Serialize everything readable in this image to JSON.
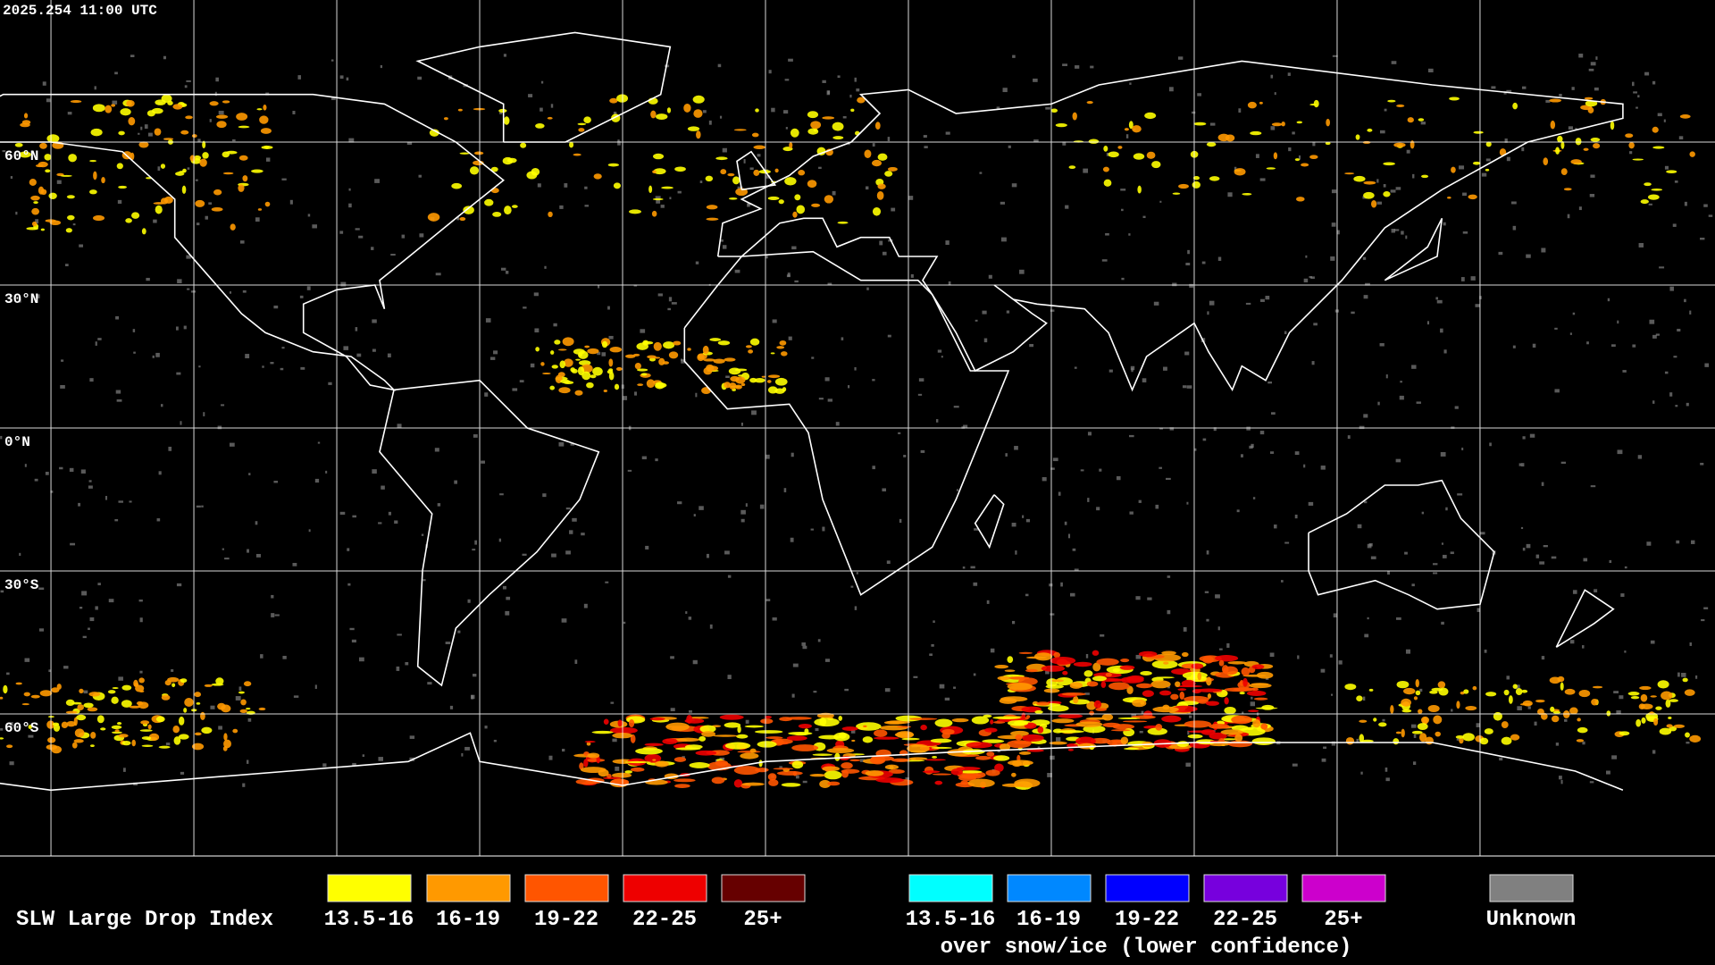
{
  "header": {
    "timestamp": "2025.254 11:00 UTC"
  },
  "map": {
    "latitude_labels": [
      "60°N",
      "30°N",
      "0°N",
      "30°S",
      "60°S"
    ]
  },
  "legend": {
    "title": "SLW Large Drop Index",
    "items": [
      {
        "label": "13.5-16",
        "color": "#ffff00"
      },
      {
        "label": "16-19",
        "color": "#ff9900"
      },
      {
        "label": "19-22",
        "color": "#ff5500"
      },
      {
        "label": "22-25",
        "color": "#ee0000"
      },
      {
        "label": "25+",
        "color": "#660000"
      }
    ],
    "snow_items": [
      {
        "label": "13.5-16",
        "color": "#00ffff"
      },
      {
        "label": "16-19",
        "color": "#0088ff"
      },
      {
        "label": "19-22",
        "color": "#0000ff"
      },
      {
        "label": "22-25",
        "color": "#7700dd"
      },
      {
        "label": "25+",
        "color": "#cc00cc"
      }
    ],
    "snow_caption": "over snow/ice (lower confidence)",
    "unknown": {
      "label": "Unknown",
      "color": "#808080"
    }
  }
}
